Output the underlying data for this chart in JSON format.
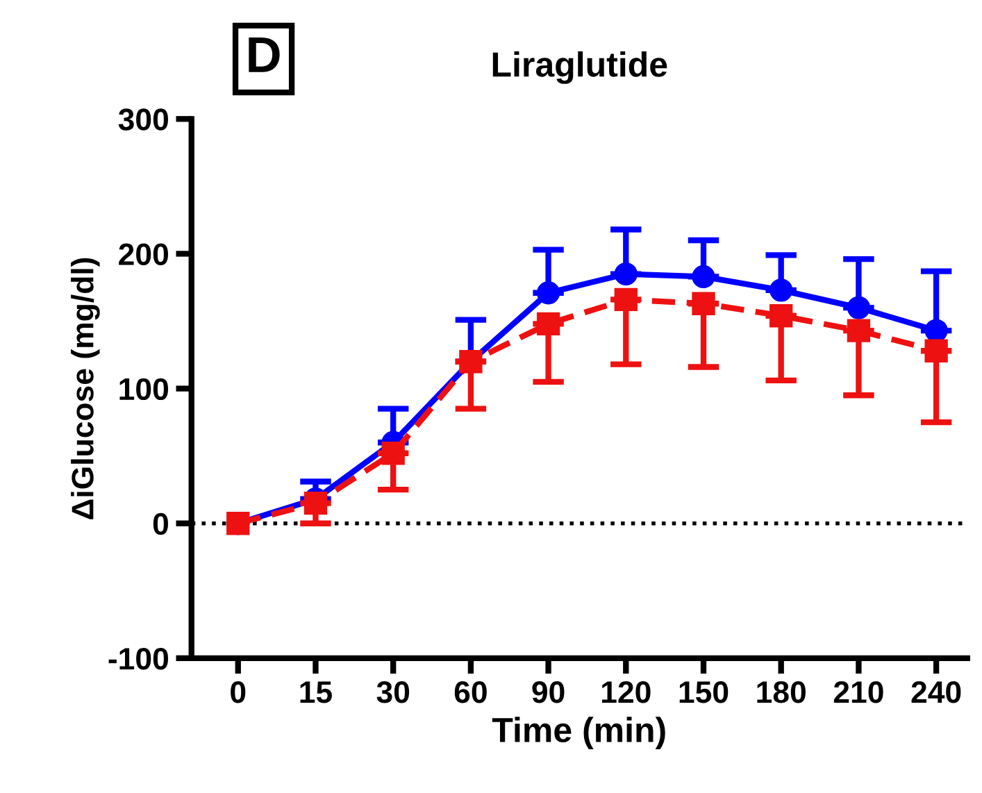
{
  "chart_data": {
    "type": "line",
    "title": "Liraglutide",
    "xlabel": "Time (min)",
    "ylabel": "ΔiGlucose (mg/dl)",
    "annotations": [
      "D"
    ],
    "categories": [
      "0",
      "15",
      "30",
      "60",
      "90",
      "120",
      "150",
      "180",
      "210",
      "240"
    ],
    "series": [
      {
        "color": "#0000ff",
        "marker": "circle",
        "line_style": "solid",
        "values": [
          0,
          18,
          60,
          120,
          171,
          185,
          183,
          173,
          160,
          143
        ],
        "errors": [
          null,
          [
            18,
            31
          ],
          [
            60,
            85
          ],
          [
            120,
            151
          ],
          [
            171,
            203
          ],
          [
            185,
            218
          ],
          [
            183,
            210
          ],
          [
            173,
            199
          ],
          [
            160,
            196
          ],
          [
            143,
            187
          ]
        ]
      },
      {
        "color": "#ee1111",
        "marker": "square",
        "line_style": "dashed",
        "values": [
          0,
          15,
          52,
          120,
          148,
          166,
          163,
          154,
          143,
          128
        ],
        "errors": [
          null,
          [
            0,
            15
          ],
          [
            25,
            52
          ],
          [
            85,
            120
          ],
          [
            105,
            148
          ],
          [
            118,
            166
          ],
          [
            116,
            163
          ],
          [
            106,
            154
          ],
          [
            95,
            143
          ],
          [
            75,
            128
          ]
        ]
      }
    ],
    "ylim": [
      -100,
      300
    ],
    "yticks": [
      -100,
      0,
      100,
      200,
      300
    ],
    "ref_lines": [
      {
        "axis": "y",
        "value": 0,
        "color": "#000000",
        "line_style": "dotted"
      }
    ],
    "grid": false
  }
}
